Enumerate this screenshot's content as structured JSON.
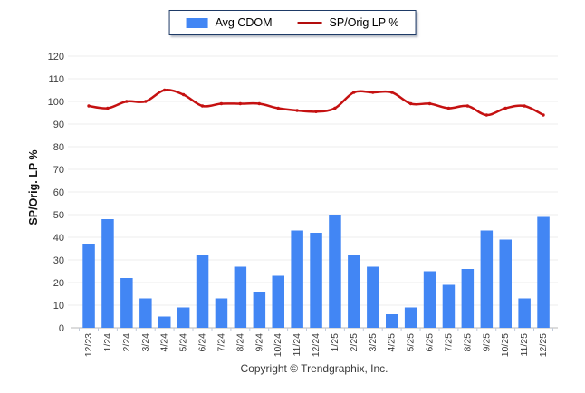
{
  "legend": {
    "items": [
      {
        "label": "Avg CDOM",
        "type": "bar",
        "color": "#4286f4"
      },
      {
        "label": "SP/Orig LP %",
        "type": "line",
        "color": "#b30d0d"
      }
    ]
  },
  "footer": {
    "copyright": "Copyright © Trendgraphix, Inc."
  },
  "colors": {
    "bar": "#4286f4",
    "line": "#c51111",
    "gridline": "#ececec",
    "axis": "#b8b8b8",
    "tick": "#c3cbd9",
    "tick_label": "#3d3d3d",
    "axis_title": "#111111"
  },
  "chart_data": {
    "type": "combo",
    "title": "",
    "xlabel": "",
    "ylabel": "SP/Orig. LP %",
    "ylim": [
      0,
      120
    ],
    "ytick_step": 10,
    "grid": true,
    "legend_position": "top-center",
    "categories": [
      "12/23",
      "1/24",
      "2/24",
      "3/24",
      "4/24",
      "5/24",
      "6/24",
      "7/24",
      "8/24",
      "9/24",
      "10/24",
      "11/24",
      "12/24",
      "1/25",
      "2/25",
      "3/25",
      "4/25",
      "5/25",
      "6/25",
      "7/25",
      "8/25",
      "9/25",
      "10/25",
      "11/25",
      "12/25"
    ],
    "series": [
      {
        "name": "Avg CDOM",
        "type": "bar",
        "color": "#4286f4",
        "values": [
          37,
          48,
          22,
          13,
          5,
          9,
          32,
          13,
          27,
          16,
          23,
          43,
          42,
          50,
          32,
          27,
          6,
          9,
          25,
          19,
          26,
          43,
          39,
          13,
          49
        ]
      },
      {
        "name": "SP/Orig LP %",
        "type": "line",
        "color": "#c51111",
        "values": [
          98,
          97,
          100,
          100,
          105,
          103,
          98,
          99,
          99,
          99,
          97,
          96,
          95.5,
          97,
          104,
          104,
          104,
          99,
          99,
          97,
          98,
          94,
          97,
          98,
          94
        ]
      }
    ]
  }
}
